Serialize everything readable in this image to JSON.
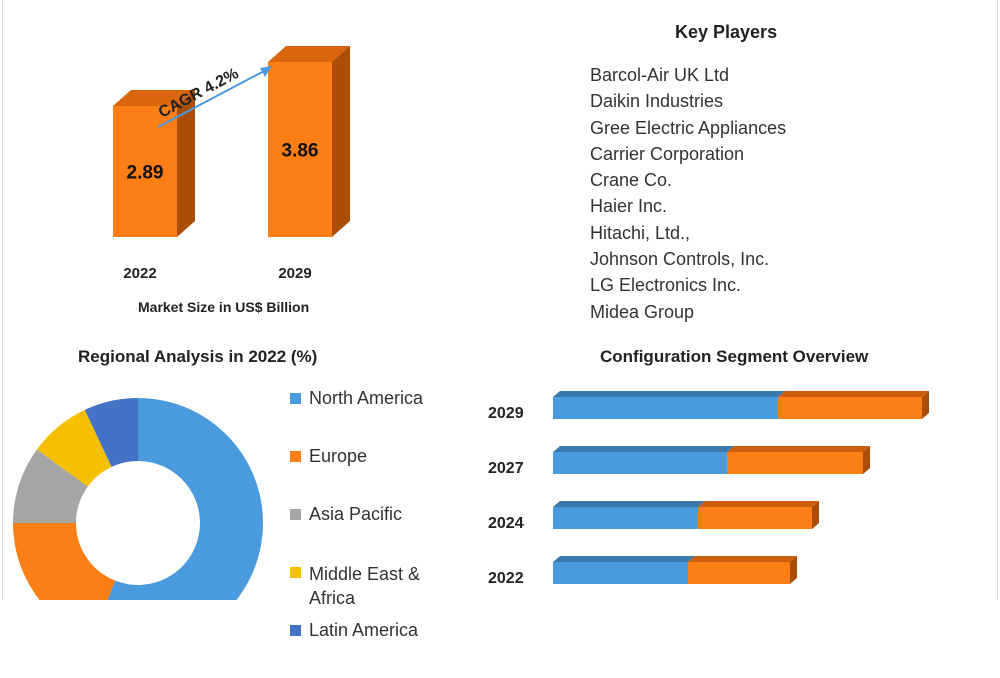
{
  "chart_data": [
    {
      "type": "bar",
      "title": "",
      "xlabel": "Market Size in US$ Billion",
      "categories": [
        "2022",
        "2029"
      ],
      "values": [
        2.89,
        3.86
      ],
      "annotation": "CAGR 4.2%",
      "color": "#fd7e14"
    },
    {
      "type": "pie",
      "title": "Regional Analysis in 2022 (%)",
      "labels": [
        "North America",
        "Europe",
        "Asia Pacific",
        "Middle East & Africa",
        "Latin America"
      ],
      "values": [
        56,
        19,
        10,
        8,
        7
      ],
      "colors": [
        "#4a9ade",
        "#fd7e14",
        "#a5a5a5",
        "#f5c000",
        "#4472c4"
      ],
      "legend": "right"
    },
    {
      "type": "bar",
      "orientation": "horizontal-stacked",
      "title": "Configuration Segment Overview",
      "categories": [
        "2029",
        "2027",
        "2024",
        "2022"
      ],
      "series": [
        {
          "values": [
            225,
            174,
            145,
            135
          ],
          "color": "#4a9ade"
        },
        {
          "values": [
            144,
            136,
            114,
            102
          ],
          "color": "#fd7e14"
        }
      ]
    }
  ],
  "key_players": {
    "title": "Key Players",
    "items": [
      "Barcol-Air UK Ltd",
      "Daikin Industries",
      "Gree Electric Appliances",
      "Carrier Corporation",
      "Crane Co.",
      "Haier Inc.",
      "Hitachi, Ltd.,",
      "Johnson Controls, Inc.",
      "LG Electronics Inc.",
      "Midea Group"
    ]
  }
}
